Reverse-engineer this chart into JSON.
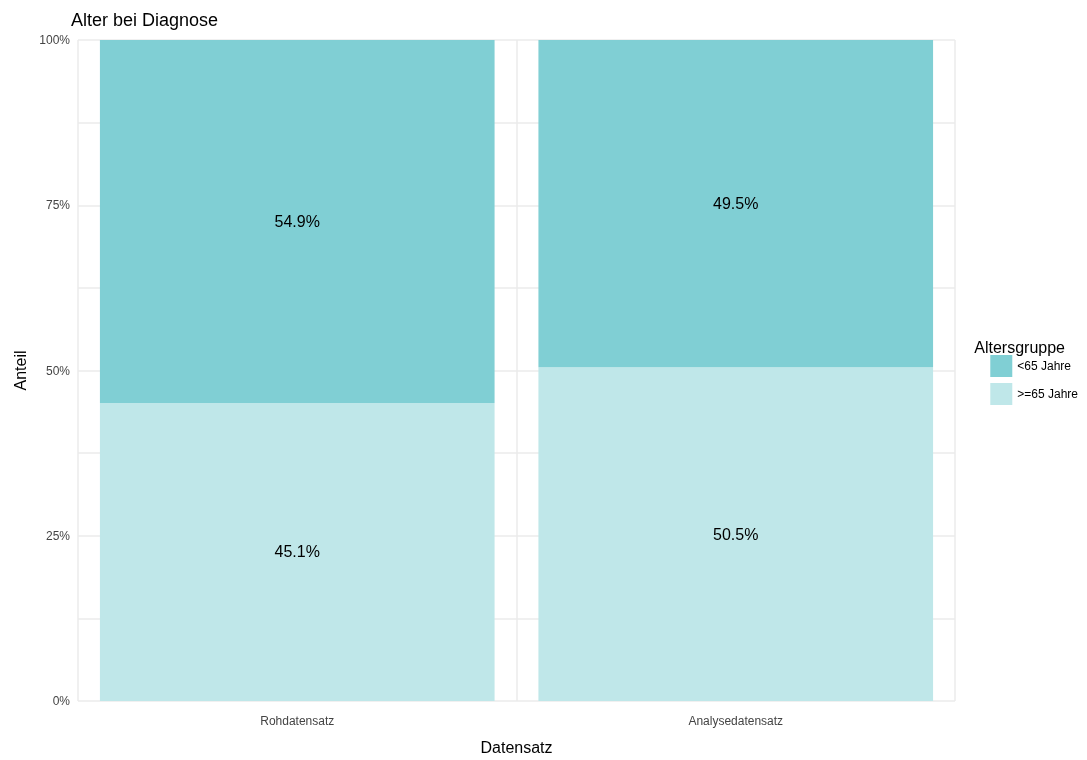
{
  "chart_data": {
    "type": "bar",
    "title": "Alter bei Diagnose",
    "xlabel": "Datensatz",
    "ylabel": "Anteil",
    "legend_title": "Altersgruppe",
    "categories": [
      "Rohdatensatz",
      "Analysedatensatz"
    ],
    "series": [
      {
        "name": ">=65 Jahre",
        "color": "#bfe7e9",
        "values": [
          45.1,
          50.5
        ],
        "value_labels": [
          "45.1%",
          "50.5%"
        ]
      },
      {
        "name": "<65 Jahre",
        "color": "#80cfd4",
        "values": [
          54.9,
          49.5
        ],
        "value_labels": [
          "54.9%",
          "49.5%"
        ]
      }
    ],
    "stacked": true,
    "ylim": [
      0,
      100
    ],
    "yticks": [
      {
        "value": 0,
        "label": "0%"
      },
      {
        "value": 12.5,
        "label": null
      },
      {
        "value": 25,
        "label": "25%"
      },
      {
        "value": 37.5,
        "label": null
      },
      {
        "value": 50,
        "label": "50%"
      },
      {
        "value": 62.5,
        "label": null
      },
      {
        "value": 75,
        "label": "75%"
      },
      {
        "value": 87.5,
        "label": null
      },
      {
        "value": 100,
        "label": "100%"
      }
    ],
    "grid": true,
    "legend": "right"
  }
}
